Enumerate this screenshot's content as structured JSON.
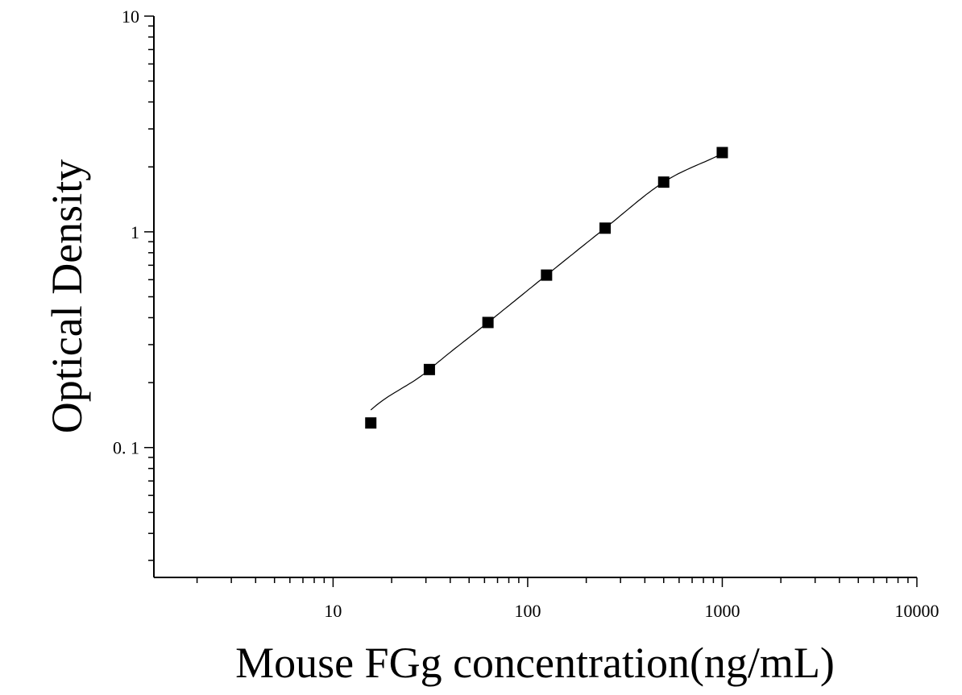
{
  "chart_data": {
    "type": "scatter",
    "xlabel": "Mouse FGg concentration(ng/mL)",
    "ylabel": "Optical Density",
    "xscale": "log",
    "yscale": "log",
    "xlim": [
      1.2,
      10000
    ],
    "ylim": [
      0.025,
      10
    ],
    "x_ticks": [
      {
        "value": 10,
        "label": "10"
      },
      {
        "value": 100,
        "label": "100"
      },
      {
        "value": 1000,
        "label": "1000"
      },
      {
        "value": 10000,
        "label": "10000"
      }
    ],
    "y_ticks": [
      {
        "value": 0.1,
        "label": "0. 1"
      },
      {
        "value": 1,
        "label": "1"
      },
      {
        "value": 10,
        "label": "10"
      }
    ],
    "grid": false,
    "legend": "none",
    "series": [
      {
        "marker": "square",
        "color": "#000000",
        "points": [
          {
            "x": 15.625,
            "y": 0.13
          },
          {
            "x": 31.25,
            "y": 0.23
          },
          {
            "x": 62.5,
            "y": 0.38
          },
          {
            "x": 125,
            "y": 0.63
          },
          {
            "x": 250,
            "y": 1.04
          },
          {
            "x": 500,
            "y": 1.7
          },
          {
            "x": 1000,
            "y": 2.33
          }
        ]
      }
    ],
    "fit_curve": {
      "color": "#000000",
      "x_range": [
        15.625,
        1000
      ]
    }
  }
}
